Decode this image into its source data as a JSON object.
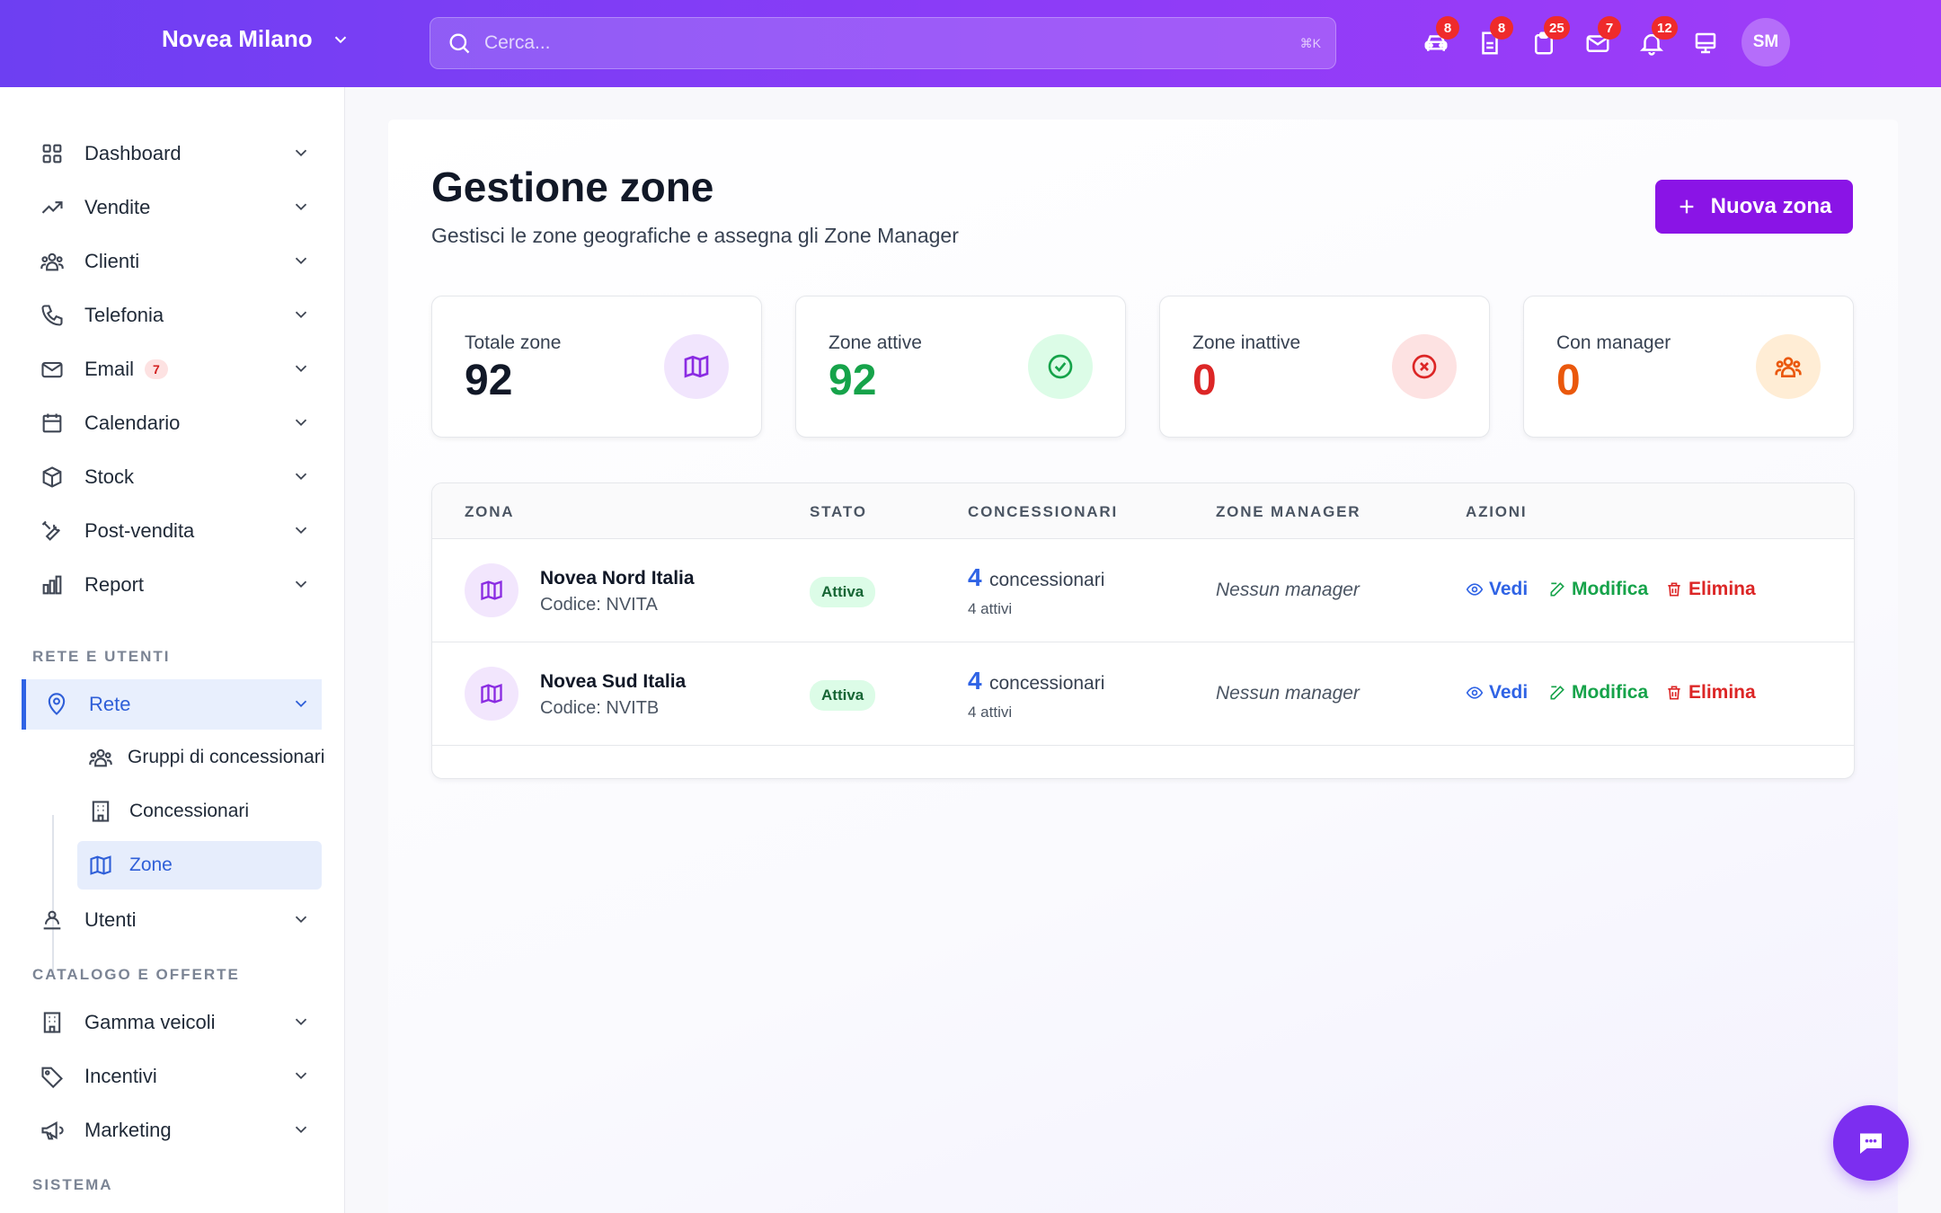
{
  "topbar": {
    "brand": "Novea Milano",
    "search_placeholder": "Cerca...",
    "search_shortcut": "⌘K",
    "icons": [
      {
        "name": "car-icon",
        "badge": "8"
      },
      {
        "name": "document-icon",
        "badge": "8"
      },
      {
        "name": "clipboard-icon",
        "badge": "25"
      },
      {
        "name": "mail-icon",
        "badge": "7"
      },
      {
        "name": "bell-icon",
        "badge": "12"
      },
      {
        "name": "monitor-icon",
        "badge": ""
      }
    ],
    "avatar_initials": "SM"
  },
  "sidebar": {
    "items": [
      {
        "label": "Dashboard"
      },
      {
        "label": "Vendite"
      },
      {
        "label": "Clienti"
      },
      {
        "label": "Telefonia"
      },
      {
        "label": "Email",
        "badge": "7"
      },
      {
        "label": "Calendario"
      },
      {
        "label": "Stock"
      },
      {
        "label": "Post-vendita"
      },
      {
        "label": "Report"
      }
    ],
    "section_rete": "RETE E UTENTI",
    "rete": {
      "label": "Rete"
    },
    "rete_sub": [
      {
        "label": "Gruppi di concessionari"
      },
      {
        "label": "Concessionari"
      },
      {
        "label": "Zone"
      }
    ],
    "utenti": {
      "label": "Utenti"
    },
    "section_catalogo": "CATALOGO E OFFERTE",
    "catalogo": [
      {
        "label": "Gamma veicoli"
      },
      {
        "label": "Incentivi"
      },
      {
        "label": "Marketing"
      }
    ],
    "section_sistema": "SISTEMA"
  },
  "main": {
    "title": "Gestione zone",
    "subtitle": "Gestisci le zone geografiche e assegna gli Zone Manager",
    "new_button": "Nuova zona",
    "stats": [
      {
        "label": "Totale zone",
        "value": "92",
        "color": "#111827"
      },
      {
        "label": "Zone attive",
        "value": "92",
        "color": "#16a34a"
      },
      {
        "label": "Zone inattive",
        "value": "0",
        "color": "#dc2626"
      },
      {
        "label": "Con manager",
        "value": "0",
        "color": "#ea580c"
      }
    ],
    "table": {
      "headers": [
        "ZONA",
        "STATO",
        "CONCESSIONARI",
        "ZONE MANAGER",
        "AZIONI"
      ],
      "rows": [
        {
          "name": "Novea Nord Italia",
          "code": "Codice: NVITA",
          "status": "Attiva",
          "conc_count": "4",
          "conc_label": "concessionari",
          "conc_active": "4 attivi",
          "manager": "Nessun manager"
        },
        {
          "name": "Novea Sud Italia",
          "code": "Codice: NVITB",
          "status": "Attiva",
          "conc_count": "4",
          "conc_label": "concessionari",
          "conc_active": "4 attivi",
          "manager": "Nessun manager"
        }
      ],
      "actions": {
        "view": "Vedi",
        "edit": "Modifica",
        "delete": "Elimina"
      }
    }
  }
}
